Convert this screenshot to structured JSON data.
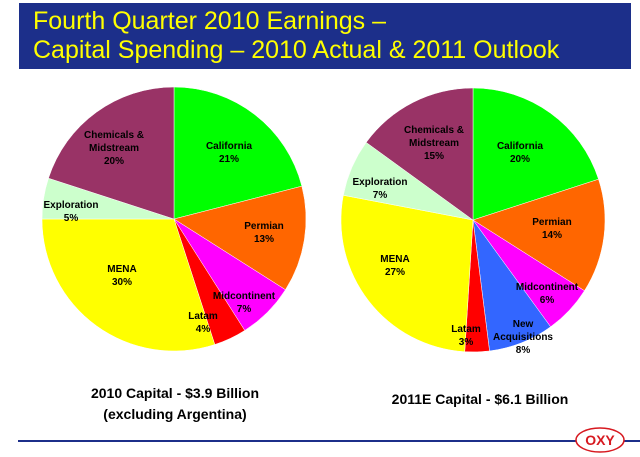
{
  "header": {
    "line1": "Fourth Quarter 2010 Earnings –",
    "line2": "Capital Spending – 2010 Actual & 2011 Outlook",
    "background": "#1c2f8a",
    "text_color": "#ffff00"
  },
  "chart_data": [
    {
      "type": "pie",
      "title": "2010 Capital - $3.9 Billion",
      "subtitle": "(excluding Argentina)",
      "slices": [
        {
          "label": "California",
          "value": 21,
          "pct": "21%",
          "color": "#00ff00"
        },
        {
          "label": "Permian",
          "value": 13,
          "pct": "13%",
          "color": "#ff6600"
        },
        {
          "label": "Midcontinent",
          "value": 7,
          "pct": "7%",
          "color": "#ff00ff"
        },
        {
          "label": "Latam",
          "value": 4,
          "pct": "4%",
          "color": "#ff0000"
        },
        {
          "label": "MENA",
          "value": 30,
          "pct": "30%",
          "color": "#ffff00"
        },
        {
          "label": "Exploration",
          "value": 5,
          "pct": "5%",
          "color": "#ccffcc"
        },
        {
          "label": "Chemicals &\nMidstream",
          "value": 20,
          "pct": "20%",
          "color": "#993366"
        }
      ]
    },
    {
      "type": "pie",
      "title": "2011E Capital - $6.1 Billion",
      "slices": [
        {
          "label": "California",
          "value": 20,
          "pct": "20%",
          "color": "#00ff00"
        },
        {
          "label": "Permian",
          "value": 14,
          "pct": "14%",
          "color": "#ff6600"
        },
        {
          "label": "Midcontinent",
          "value": 6,
          "pct": "6%",
          "color": "#ff00ff"
        },
        {
          "label": "New\nAcquisitions",
          "value": 8,
          "pct": "8%",
          "color": "#3366ff"
        },
        {
          "label": "Latam",
          "value": 3,
          "pct": "3%",
          "color": "#ff0000"
        },
        {
          "label": "MENA",
          "value": 27,
          "pct": "27%",
          "color": "#ffff00"
        },
        {
          "label": "Exploration",
          "value": 7,
          "pct": "7%",
          "color": "#ccffcc"
        },
        {
          "label": "Chemicals &\nMidstream",
          "value": 15,
          "pct": "15%",
          "color": "#993366"
        }
      ]
    }
  ],
  "logo": {
    "text": "OXY",
    "color": "#d71920"
  }
}
